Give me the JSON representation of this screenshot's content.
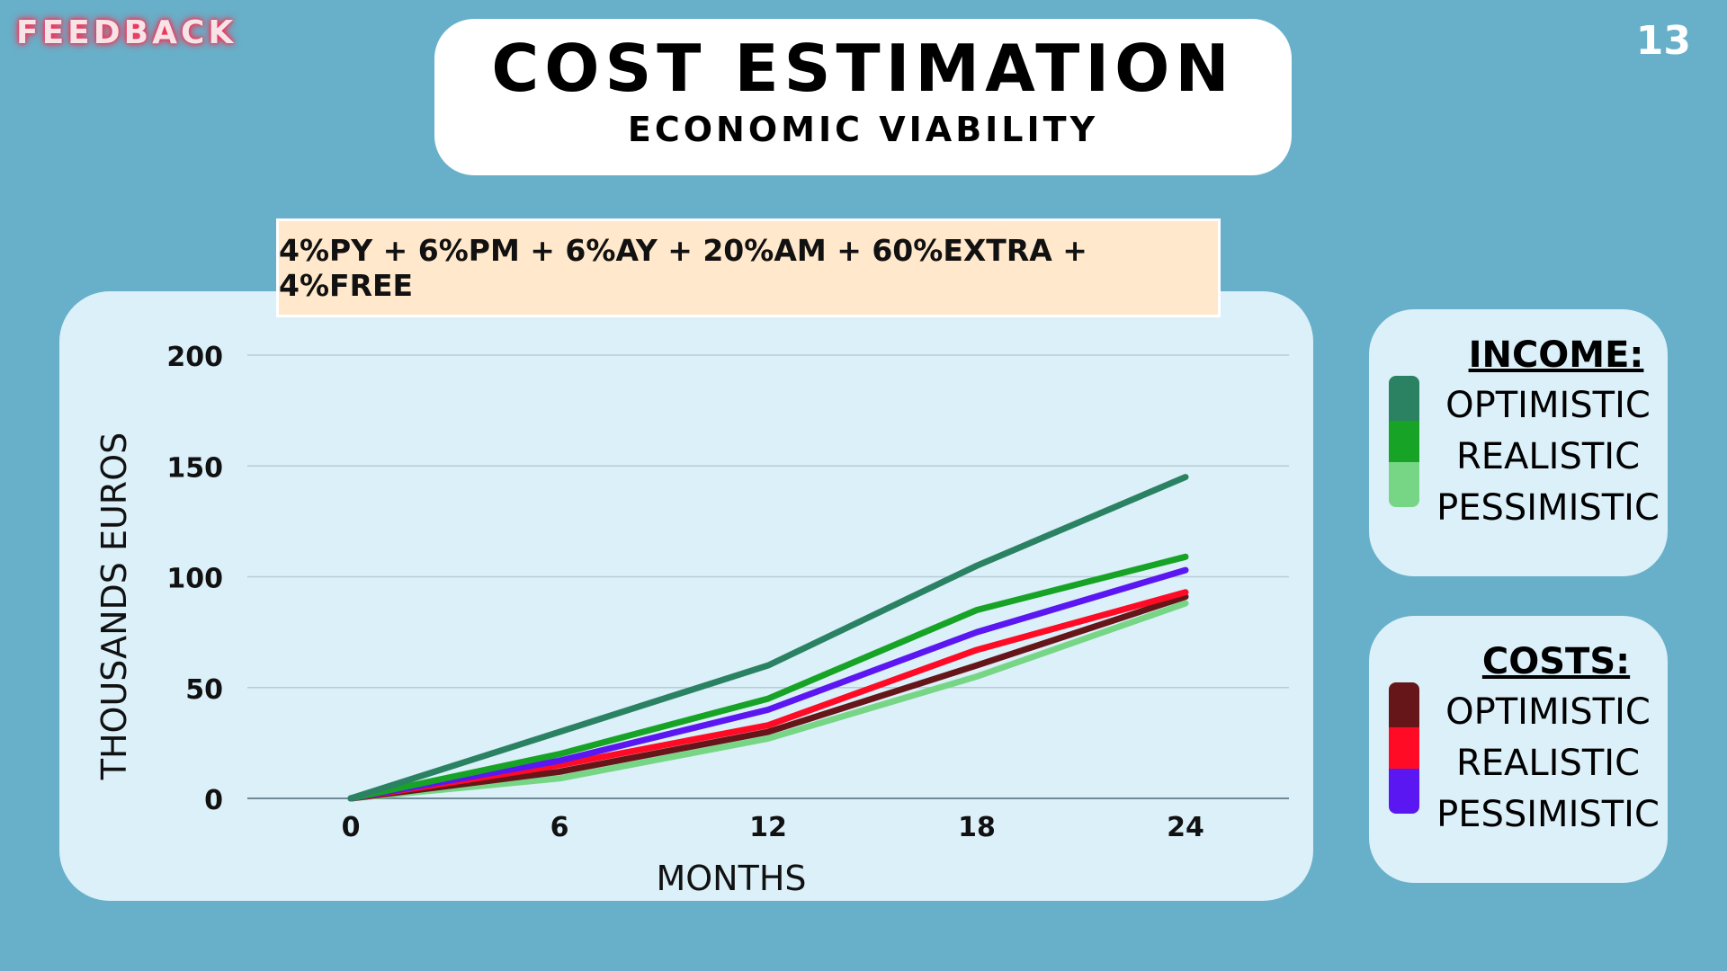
{
  "logo": "FEEDBACK",
  "page_number": "13",
  "title": "COST ESTIMATION",
  "subtitle": "ECONOMIC VIABILITY",
  "formula": "4%PY + 6%PM + 6%AY + 20%AM + 60%EXTRA + 4%FREE",
  "legend_income": {
    "title": "INCOME:",
    "items": [
      {
        "label": "OPTIMISTIC",
        "color": "#2a8263"
      },
      {
        "label": "REALISTIC",
        "color": "#17a325"
      },
      {
        "label": "PESSIMISTIC",
        "color": "#77d685"
      }
    ]
  },
  "legend_costs": {
    "title": "COSTS:",
    "items": [
      {
        "label": "OPTIMISTIC",
        "color": "#661619"
      },
      {
        "label": "REALISTIC",
        "color": "#ff0b25"
      },
      {
        "label": "PESSIMISTIC",
        "color": "#5b17f2"
      }
    ]
  },
  "chart_data": {
    "type": "line",
    "xlabel": "MONTHS",
    "ylabel": "THOUSANDS EUROS",
    "x": [
      0,
      6,
      12,
      18,
      24
    ],
    "ylim": [
      0,
      200
    ],
    "yticks": [
      0,
      50,
      100,
      150,
      200
    ],
    "grid": true,
    "series": [
      {
        "name": "INCOME: PESSIMISTIC",
        "color": "#77d685",
        "values": [
          0,
          9,
          27,
          55,
          88
        ]
      },
      {
        "name": "COSTS: OPTIMISTIC",
        "color": "#661619",
        "values": [
          0,
          12,
          30,
          60,
          91
        ]
      },
      {
        "name": "COSTS: REALISTIC",
        "color": "#ff0b25",
        "values": [
          0,
          15,
          33,
          67,
          93
        ]
      },
      {
        "name": "COSTS: PESSIMISTIC",
        "color": "#5b17f2",
        "values": [
          0,
          17,
          40,
          75,
          103
        ]
      },
      {
        "name": "INCOME: REALISTIC",
        "color": "#17a325",
        "values": [
          0,
          20,
          45,
          85,
          109
        ]
      },
      {
        "name": "INCOME: OPTIMISTIC",
        "color": "#2a8263",
        "values": [
          0,
          30,
          60,
          105,
          145
        ]
      }
    ]
  }
}
